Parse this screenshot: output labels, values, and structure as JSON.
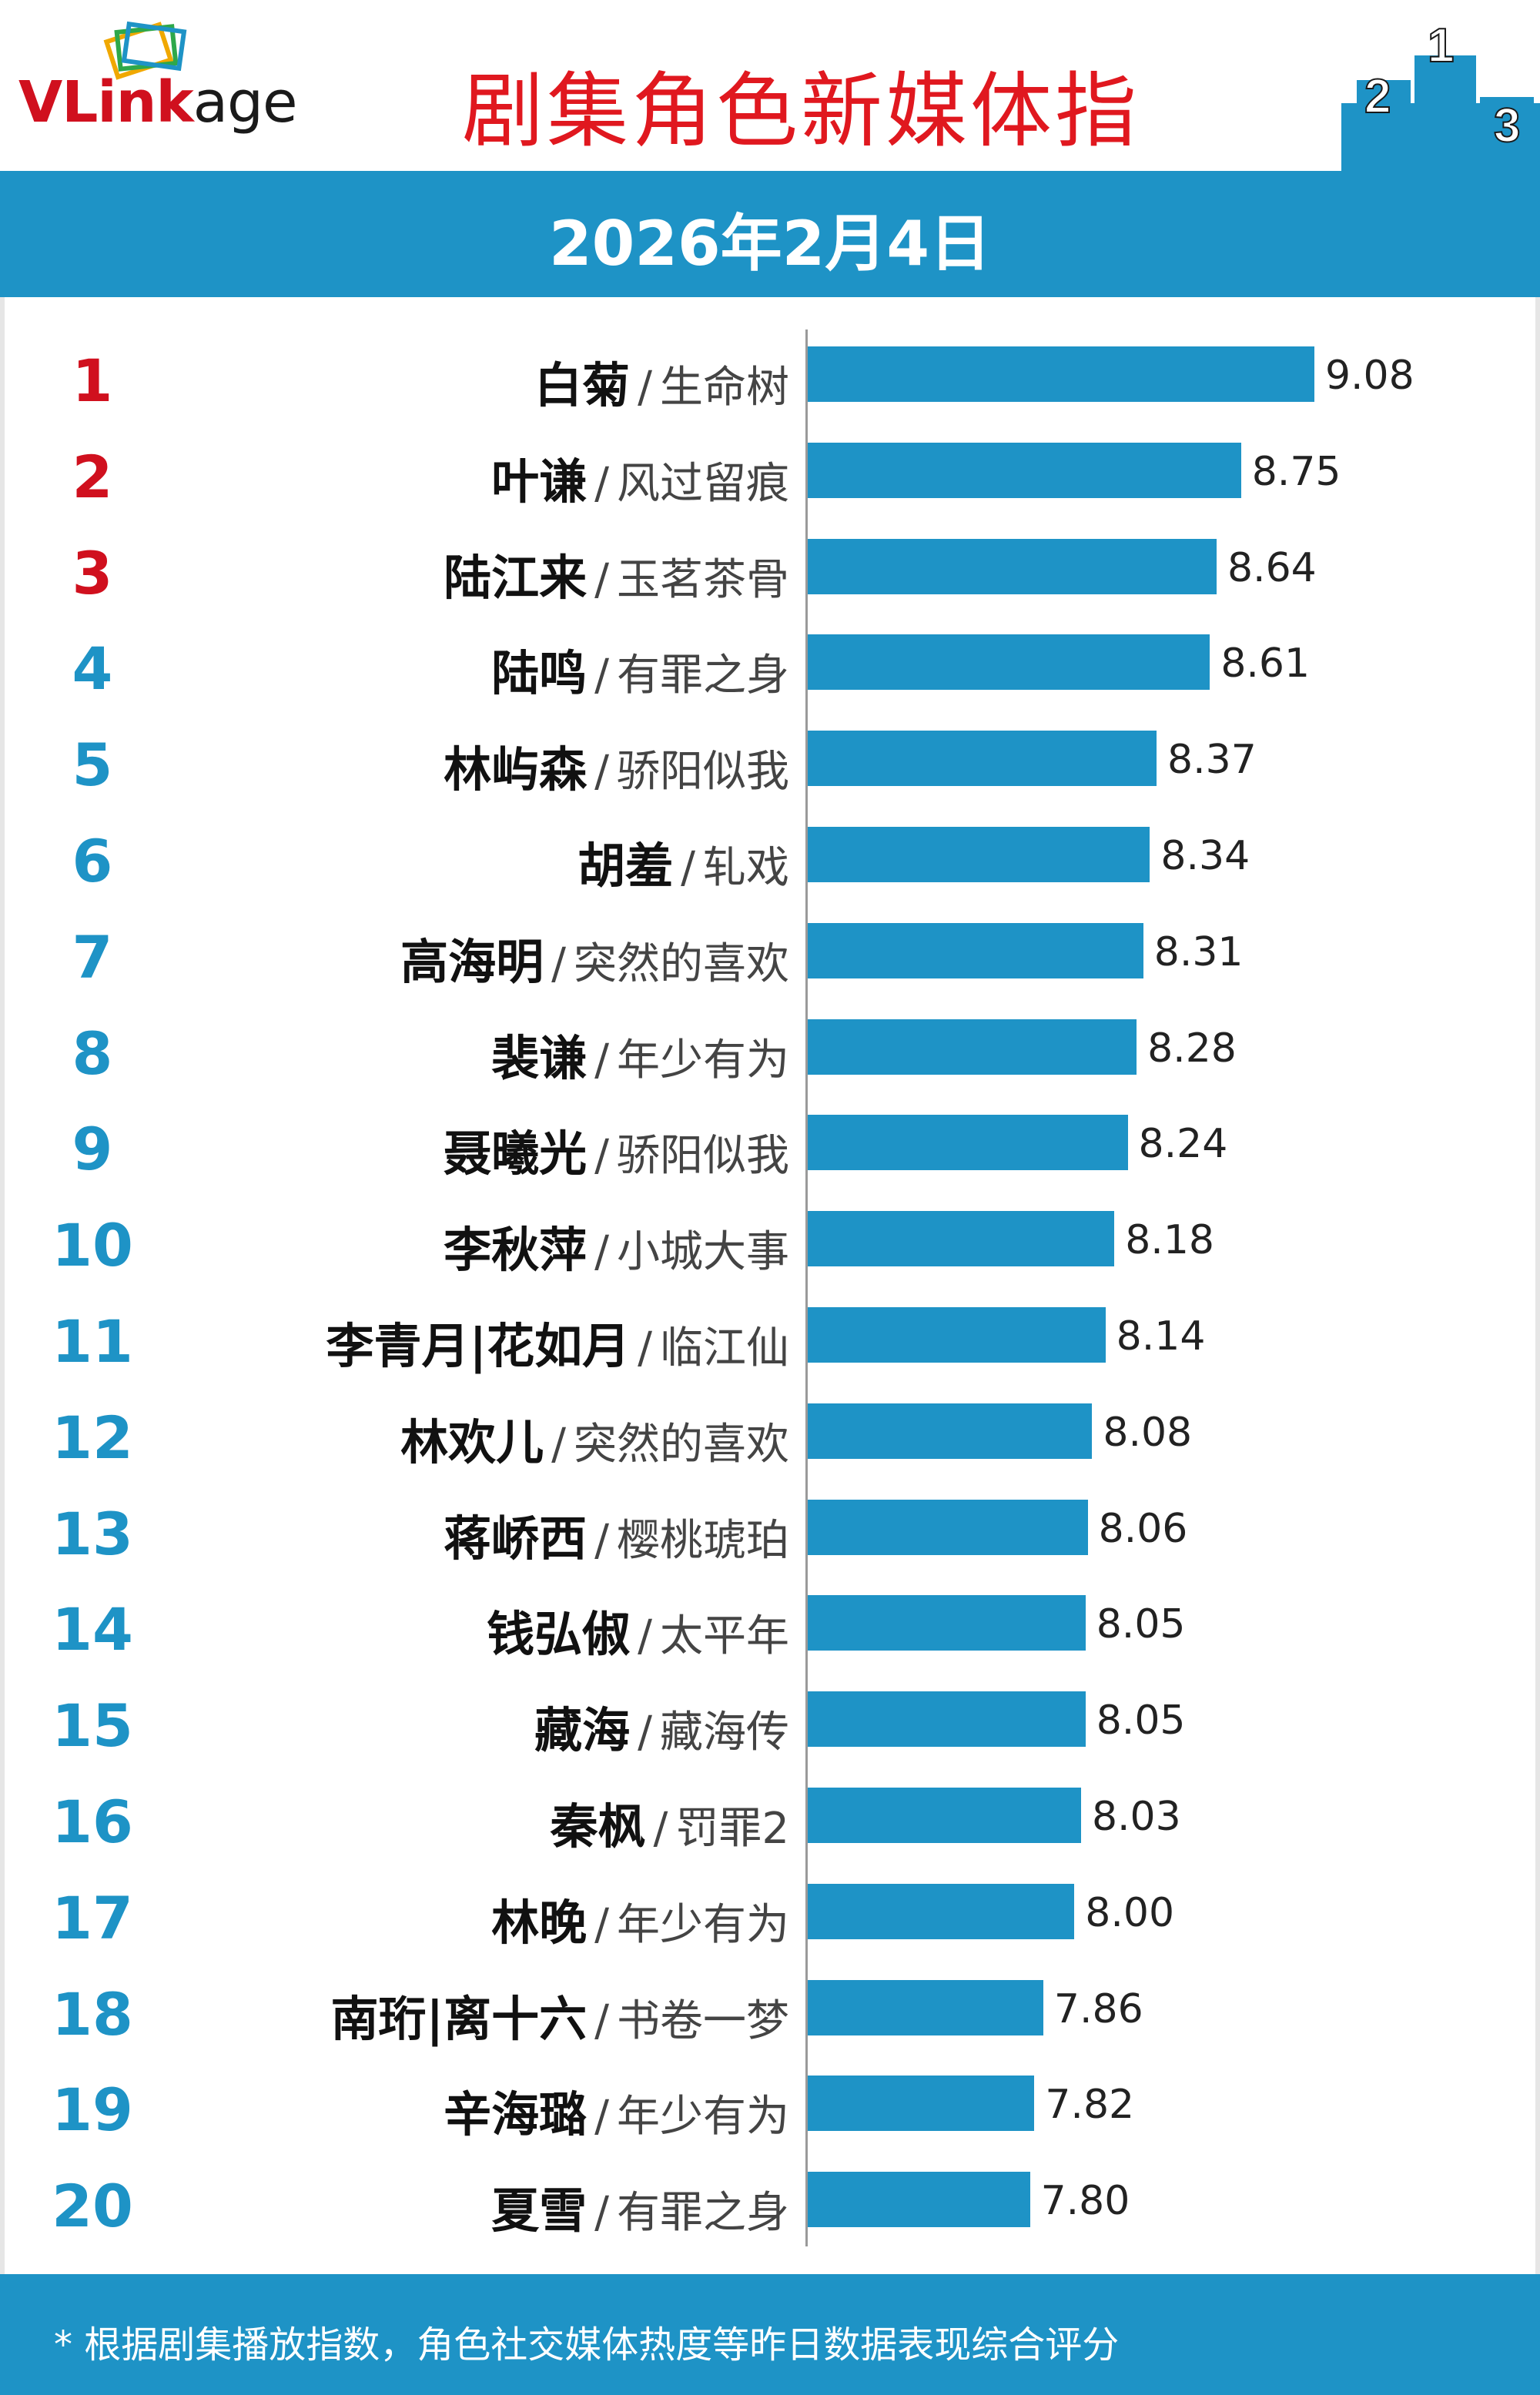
{
  "brand": {
    "logo_v": "V",
    "logo_link": "Link",
    "logo_age": "age"
  },
  "title": "剧集角色新媒体指",
  "date": "2026年2月4日",
  "footnote": "* 根据剧集播放指数，角色社交媒体热度等昨日数据表现综合评分",
  "colors": {
    "accent": "#1e93c6",
    "top_rank": "#d0101e",
    "title": "#e0181f"
  },
  "chart_data": {
    "type": "bar",
    "orientation": "horizontal",
    "title": "剧集角色新媒体指",
    "xlim": [
      6.8,
      9.25
    ],
    "grid": false,
    "legend": "none",
    "rows": [
      {
        "rank": "1",
        "name": "白菊",
        "show": "生命树",
        "value": 9.08,
        "label": "9.08"
      },
      {
        "rank": "2",
        "name": "叶谦",
        "show": "风过留痕",
        "value": 8.75,
        "label": "8.75"
      },
      {
        "rank": "3",
        "name": "陆江来",
        "show": "玉茗茶骨",
        "value": 8.64,
        "label": "8.64"
      },
      {
        "rank": "4",
        "name": "陆鸣",
        "show": "有罪之身",
        "value": 8.61,
        "label": "8.61"
      },
      {
        "rank": "5",
        "name": "林屿森",
        "show": "骄阳似我",
        "value": 8.37,
        "label": "8.37"
      },
      {
        "rank": "6",
        "name": "胡羞",
        "show": "轧戏",
        "value": 8.34,
        "label": "8.34"
      },
      {
        "rank": "7",
        "name": "高海明",
        "show": "突然的喜欢",
        "value": 8.31,
        "label": "8.31"
      },
      {
        "rank": "8",
        "name": "裴谦",
        "show": "年少有为",
        "value": 8.28,
        "label": "8.28"
      },
      {
        "rank": "9",
        "name": "聂曦光",
        "show": "骄阳似我",
        "value": 8.24,
        "label": "8.24"
      },
      {
        "rank": "10",
        "name": "李秋萍",
        "show": "小城大事",
        "value": 8.18,
        "label": "8.18"
      },
      {
        "rank": "11",
        "name": "李青月|花如月",
        "show": "临江仙",
        "value": 8.14,
        "label": "8.14"
      },
      {
        "rank": "12",
        "name": "林欢儿",
        "show": "突然的喜欢",
        "value": 8.08,
        "label": "8.08"
      },
      {
        "rank": "13",
        "name": "蒋峤西",
        "show": "樱桃琥珀",
        "value": 8.06,
        "label": "8.06"
      },
      {
        "rank": "14",
        "name": "钱弘俶",
        "show": "太平年",
        "value": 8.05,
        "label": "8.05"
      },
      {
        "rank": "15",
        "name": "藏海",
        "show": "藏海传",
        "value": 8.05,
        "label": "8.05"
      },
      {
        "rank": "16",
        "name": "秦枫",
        "show": "罚罪2",
        "value": 8.03,
        "label": "8.03"
      },
      {
        "rank": "17",
        "name": "林晚",
        "show": "年少有为",
        "value": 8.0,
        "label": "8.00"
      },
      {
        "rank": "18",
        "name": "南珩|离十六",
        "show": "书卷一梦",
        "value": 7.86,
        "label": "7.86"
      },
      {
        "rank": "19",
        "name": "辛海璐",
        "show": "年少有为",
        "value": 7.82,
        "label": "7.82"
      },
      {
        "rank": "20",
        "name": "夏雪",
        "show": "有罪之身",
        "value": 7.8,
        "label": "7.80"
      }
    ]
  }
}
